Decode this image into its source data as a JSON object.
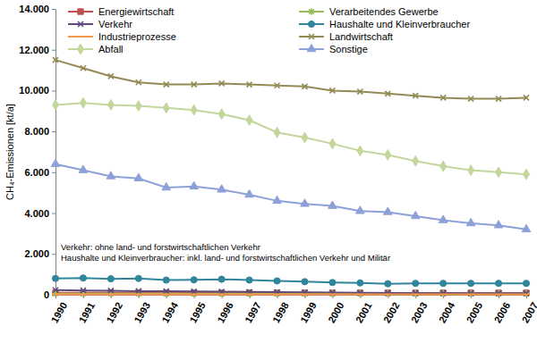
{
  "chart_data": {
    "type": "line",
    "y_label": "CH₄-Emissionen [kt/a]",
    "x": [
      1990,
      1991,
      1992,
      1993,
      1994,
      1995,
      1996,
      1997,
      1998,
      1999,
      2000,
      2001,
      2002,
      2003,
      2004,
      2005,
      2006,
      2007
    ],
    "xlim": [
      1990,
      2007
    ],
    "xticks": [
      1990,
      1991,
      1992,
      1993,
      1994,
      1995,
      1996,
      1997,
      1998,
      1999,
      2000,
      2001,
      2002,
      2003,
      2004,
      2005,
      2006,
      2007
    ],
    "ylim": [
      0,
      14000
    ],
    "yticks": [
      0,
      {
        "value": 2000,
        "label": "2.000"
      },
      {
        "value": 4000,
        "label": "4.000"
      },
      {
        "value": 6000,
        "label": "6.000"
      },
      {
        "value": 8000,
        "label": "8.000"
      },
      {
        "value": 10000,
        "label": "10.000"
      },
      {
        "value": 12000,
        "label": "12.000"
      },
      {
        "value": 14000,
        "label": "14.000"
      }
    ],
    "grid": false,
    "legend": "top",
    "annotations": [
      "Verkehr: ohne land- und forstwirtschaftlichen Verkehr",
      "Haushalte und Kleinverbraucher: inkl. land- und forstwirtschaftlichen Verkehr und Militär"
    ],
    "series": [
      {
        "name": "Energiewirtschaft",
        "color": "#c0504d",
        "marker": "square",
        "values": [
          100,
          100,
          100,
          100,
          90,
          90,
          90,
          90,
          90,
          90,
          90,
          90,
          90,
          90,
          90,
          90,
          90,
          90
        ]
      },
      {
        "name": "Verarbeitendes Gewerbe",
        "color": "#9bbb59",
        "marker": "asterisk",
        "values": [
          60,
          60,
          60,
          60,
          60,
          60,
          60,
          60,
          60,
          60,
          60,
          60,
          60,
          60,
          60,
          60,
          60,
          60
        ]
      },
      {
        "name": "Verkehr",
        "color": "#604a7b",
        "marker": "x",
        "values": [
          230,
          210,
          200,
          180,
          170,
          160,
          150,
          140,
          130,
          120,
          110,
          100,
          90,
          80,
          80,
          70,
          70,
          70
        ]
      },
      {
        "name": "Haushalte und Kleinverbraucher",
        "color": "#31859c",
        "marker": "circle",
        "values": [
          800,
          820,
          780,
          800,
          720,
          730,
          760,
          720,
          680,
          640,
          600,
          580,
          540,
          560,
          560,
          560,
          560,
          560
        ]
      },
      {
        "name": "Industrieprozesse",
        "color": "#f79646",
        "marker": "dash",
        "values": [
          20,
          20,
          20,
          20,
          20,
          20,
          20,
          20,
          20,
          20,
          20,
          20,
          20,
          20,
          20,
          20,
          20,
          20
        ]
      },
      {
        "name": "Landwirtschaft",
        "color": "#948a54",
        "marker": "x",
        "values": [
          11500,
          11100,
          10700,
          10400,
          10300,
          10300,
          10350,
          10300,
          10250,
          10200,
          10000,
          9950,
          9850,
          9750,
          9650,
          9600,
          9600,
          9650
        ]
      },
      {
        "name": "Abfall",
        "color": "#c3d69b",
        "marker": "diamond",
        "values": [
          9300,
          9400,
          9300,
          9250,
          9150,
          9050,
          8850,
          8550,
          7950,
          7700,
          7400,
          7050,
          6850,
          6550,
          6300,
          6100,
          6000,
          5900
        ]
      },
      {
        "name": "Sonstige",
        "color": "#8ea0d8",
        "marker": "triangle",
        "values": [
          6400,
          6100,
          5800,
          5700,
          5250,
          5300,
          5150,
          4900,
          4600,
          4450,
          4350,
          4100,
          4050,
          3850,
          3650,
          3500,
          3400,
          3200
        ]
      }
    ]
  }
}
